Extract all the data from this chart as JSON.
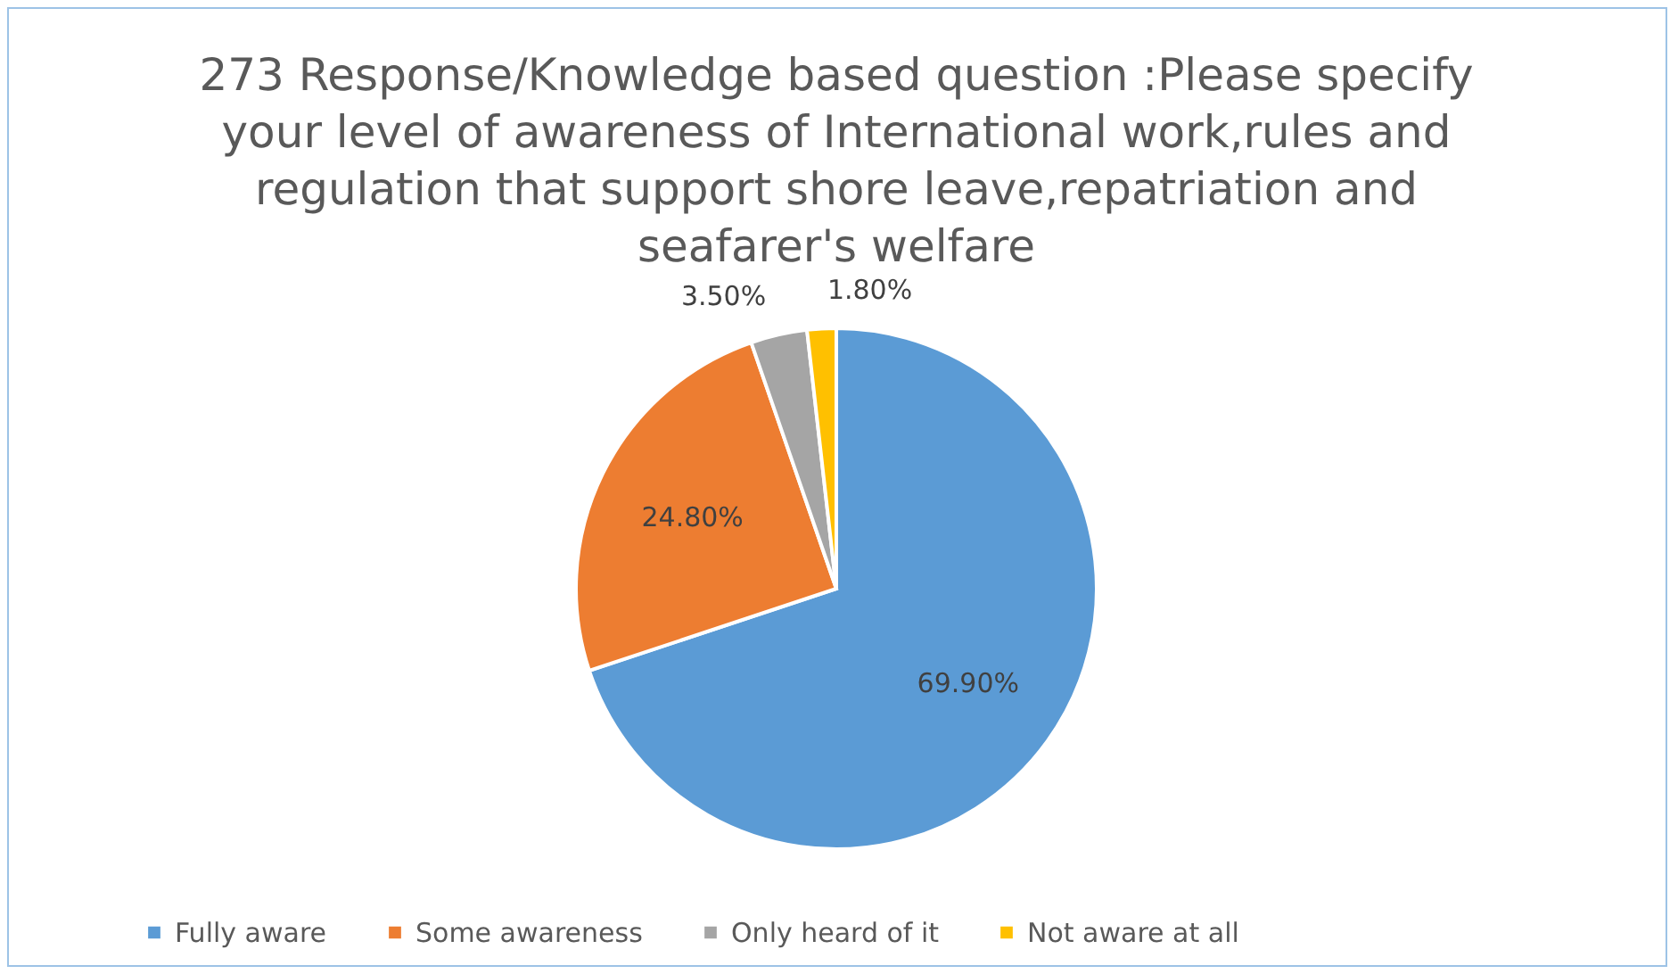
{
  "chart_data": {
    "type": "pie",
    "title": "273 Response/Knowledge based question :Please specify your level of awareness of International work,rules and regulation that support shore leave,repatriation and seafarer's welfare",
    "categories": [
      "Fully aware",
      "Some awareness",
      "Only heard of it",
      "Not aware at all"
    ],
    "values": [
      69.9,
      24.8,
      3.5,
      1.8
    ],
    "colors": [
      "#5b9bd5",
      "#ed7d31",
      "#a5a5a5",
      "#ffc000"
    ],
    "value_labels": [
      "69.90%",
      "24.80%",
      "3.50%",
      "1.80%"
    ],
    "legend": "bottom"
  }
}
